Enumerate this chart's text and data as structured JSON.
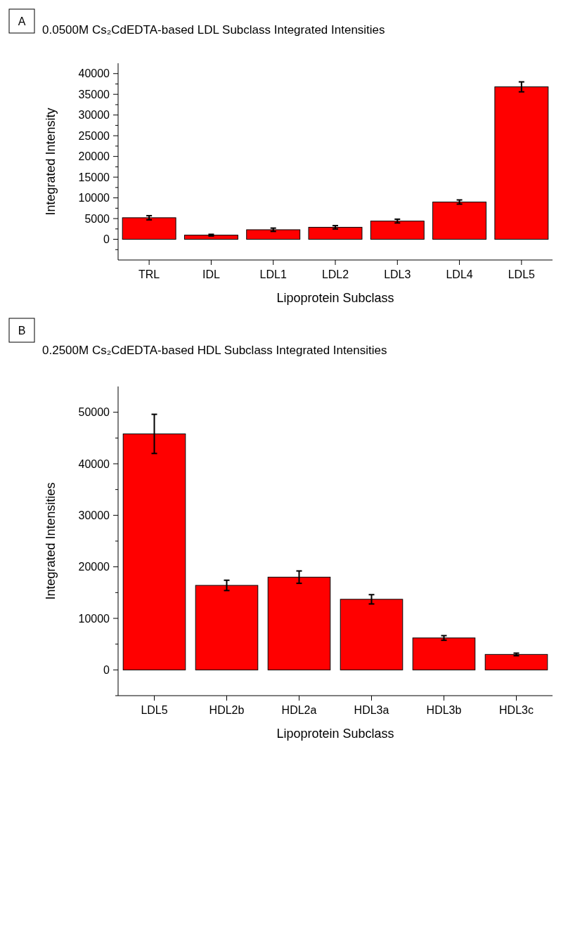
{
  "chart_data": [
    {
      "type": "bar",
      "title": "0.0500M Cs₂CdEDTA-based LDL Subclass Integrated Intensities",
      "annotations": [
        "A"
      ],
      "xlabel": "Lipoprotein Subclass",
      "ylabel": "Integrated Intensity",
      "categories": [
        "TRL",
        "IDL",
        "LDL1",
        "LDL2",
        "LDL3",
        "LDL4",
        "LDL5"
      ],
      "values": [
        5200,
        1000,
        2300,
        2900,
        4400,
        9000,
        36800
      ],
      "errors": [
        500,
        200,
        400,
        400,
        450,
        500,
        1200
      ],
      "color": "#ff0000",
      "ylim": [
        -5000,
        42500
      ],
      "yticks": [
        {
          "value": -2500,
          "label": null
        },
        0,
        {
          "value": 2500,
          "label": null
        },
        5000,
        {
          "value": 7500,
          "label": null
        },
        10000,
        {
          "value": 12500,
          "label": null
        },
        15000,
        {
          "value": 17500,
          "label": null
        },
        20000,
        {
          "value": 22500,
          "label": null
        },
        25000,
        {
          "value": 27500,
          "label": null
        },
        30000,
        {
          "value": 32500,
          "label": null
        },
        35000,
        {
          "value": 37500,
          "label": null
        },
        40000
      ],
      "grid": false
    },
    {
      "type": "bar",
      "title": "0.2500M Cs₂CdEDTA-based HDL Subclass Integrated Intensities",
      "annotations": [
        "B"
      ],
      "xlabel": "Lipoprotein Subclass",
      "ylabel": "Integrated Intensities",
      "categories": [
        "LDL5",
        "HDL2b",
        "HDL2a",
        "HDL3a",
        "HDL3b",
        "HDL3c"
      ],
      "values": [
        45800,
        16400,
        18000,
        13700,
        6200,
        3000
      ],
      "errors": [
        3800,
        1000,
        1200,
        900,
        450,
        250
      ],
      "color": "#ff0000",
      "ylim": [
        -5000,
        55000
      ],
      "yticks": [
        {
          "value": -5000,
          "label": null
        },
        0,
        {
          "value": 5000,
          "label": null
        },
        10000,
        {
          "value": 15000,
          "label": null
        },
        20000,
        {
          "value": 25000,
          "label": null
        },
        30000,
        {
          "value": 35000,
          "label": null
        },
        40000,
        {
          "value": 45000,
          "label": null
        },
        50000
      ],
      "grid": false
    }
  ]
}
